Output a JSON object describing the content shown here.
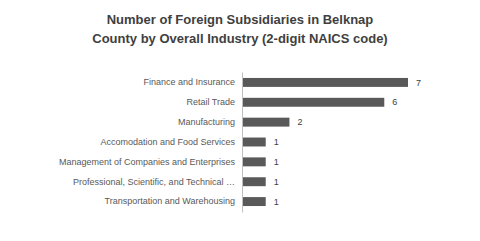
{
  "chart_data": {
    "type": "bar",
    "orientation": "horizontal",
    "title": [
      "Number of Foreign Subsidiaries in Belknap",
      "County by Overall Industry (2-digit NAICS  code)"
    ],
    "categories": [
      "Finance and Insurance",
      "Retail Trade",
      "Manufacturing",
      "Accomodation and Food Services",
      "Management of Companies and Enterprises",
      "Professional, Scientific, and Technical …",
      "Transportation and Warehousing"
    ],
    "values": [
      7,
      6,
      2,
      1,
      1,
      1,
      1
    ],
    "color": "#595959",
    "xlim": [
      0,
      7
    ],
    "data_labels": true,
    "tick_labels": "y",
    "grid": false
  }
}
